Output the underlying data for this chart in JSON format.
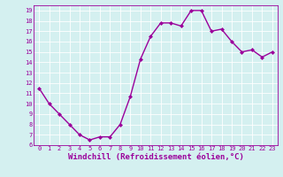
{
  "x": [
    0,
    1,
    2,
    3,
    4,
    5,
    6,
    7,
    8,
    9,
    10,
    11,
    12,
    13,
    14,
    15,
    16,
    17,
    18,
    19,
    20,
    21,
    22,
    23
  ],
  "y": [
    11.5,
    10.0,
    9.0,
    8.0,
    7.0,
    6.5,
    6.8,
    6.8,
    8.0,
    10.7,
    14.3,
    16.5,
    17.8,
    17.8,
    17.5,
    19.0,
    19.0,
    17.0,
    17.2,
    16.0,
    15.0,
    15.2,
    14.5,
    15.0
  ],
  "line_color": "#9b009b",
  "marker": "D",
  "marker_size": 2.0,
  "xlim": [
    -0.5,
    23.5
  ],
  "ylim": [
    6,
    19.5
  ],
  "yticks": [
    6,
    7,
    8,
    9,
    10,
    11,
    12,
    13,
    14,
    15,
    16,
    17,
    18,
    19
  ],
  "xticks": [
    0,
    1,
    2,
    3,
    4,
    5,
    6,
    7,
    8,
    9,
    10,
    11,
    12,
    13,
    14,
    15,
    16,
    17,
    18,
    19,
    20,
    21,
    22,
    23
  ],
  "xlabel": "Windchill (Refroidissement éolien,°C)",
  "bg_color": "#d4f0f0",
  "grid_color": "#ffffff",
  "tick_label_color": "#9b009b",
  "xlabel_color": "#9b009b",
  "tick_fontsize": 5.0,
  "xlabel_fontsize": 6.5,
  "linewidth": 1.0,
  "spine_color": "#9b009b"
}
